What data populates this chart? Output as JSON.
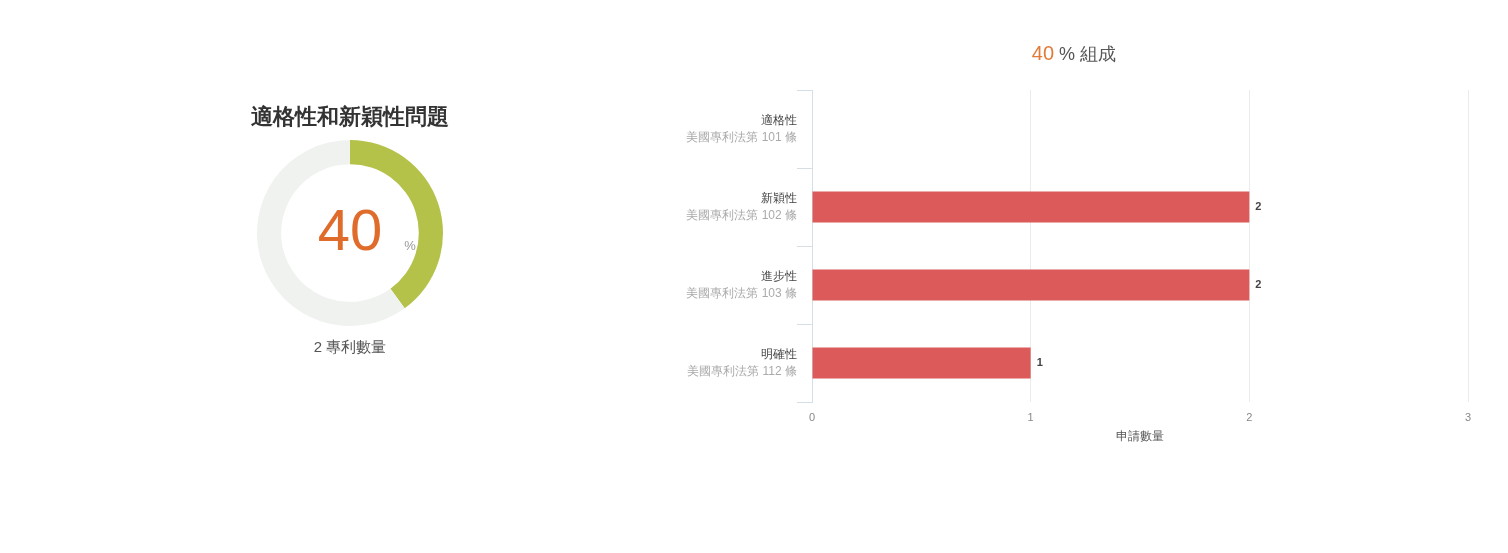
{
  "chart_data": [
    {
      "type": "donut",
      "title": "適格性和新穎性問題",
      "categories": [
        null,
        null
      ],
      "values": [
        40,
        60
      ],
      "colors": [
        "#b5c24a",
        "#f0f2ef"
      ],
      "annotations": [
        "40",
        "%",
        "2 專利數量"
      ]
    },
    {
      "type": "bar",
      "orientation": "horizontal",
      "title": "40 % 組成",
      "xlabel": "申請數量",
      "categories": [
        "適格性",
        "新穎性",
        "進步性",
        "明確性"
      ],
      "annotations": [
        "美國專利法第 101 條",
        "美國專利法第 102 條",
        "美國專利法第 103 條",
        "美國專利法第 112 條"
      ],
      "values": [
        0,
        2,
        2,
        1
      ],
      "color": "#dc5a5a",
      "value_labels": [
        null,
        "2",
        "2",
        "1"
      ],
      "xlim": [
        0,
        3
      ],
      "xticks": [
        0,
        1,
        2,
        3
      ],
      "grid": "x"
    }
  ]
}
